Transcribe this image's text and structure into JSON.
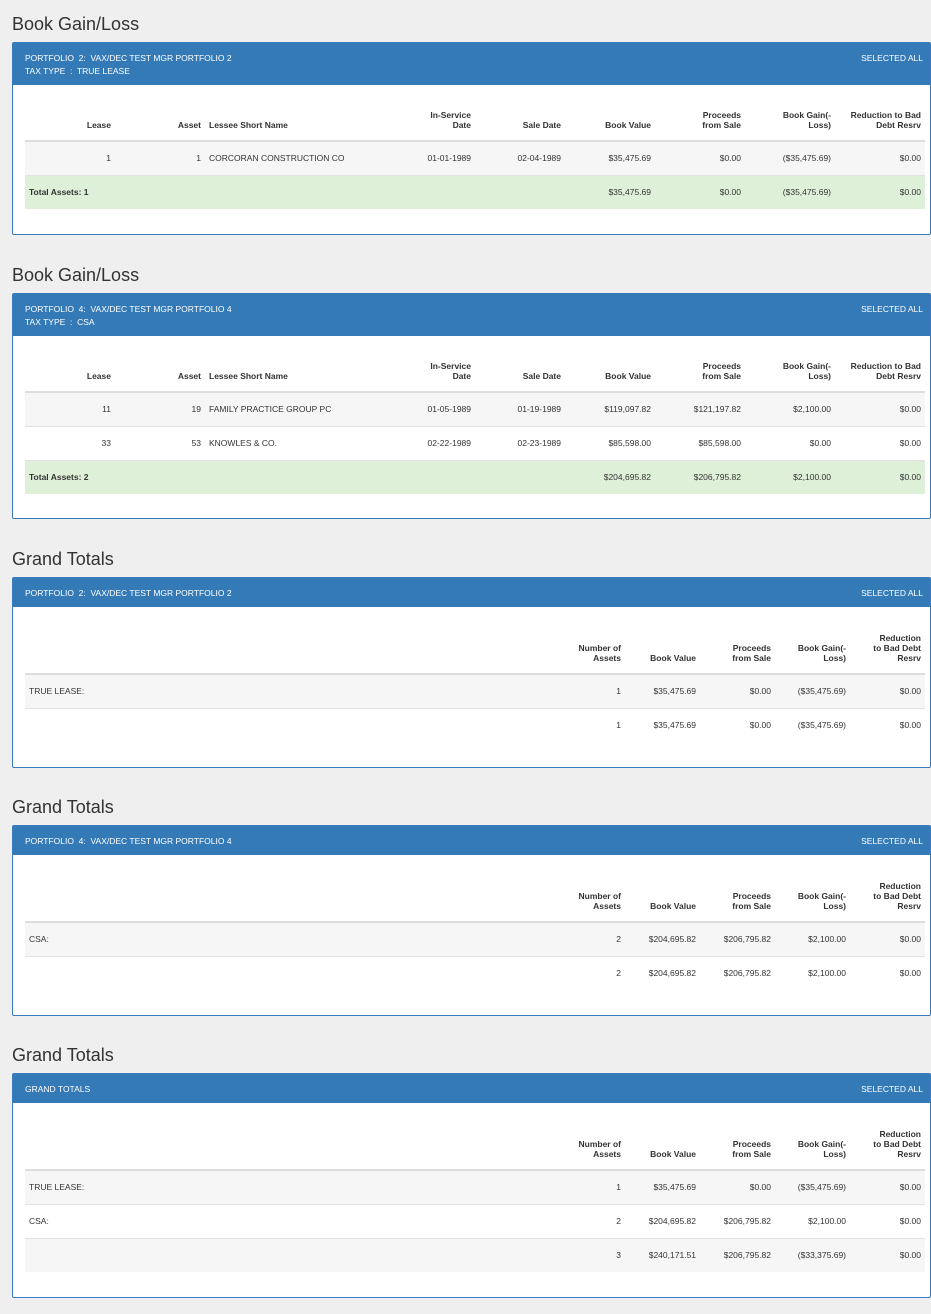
{
  "bgl1": {
    "title": "Book Gain/Loss",
    "header_line1": "PORTFOLIO  2:  VAX/DEC TEST MGR PORTFOLIO 2",
    "header_line2": "TAX TYPE  :  TRUE LEASE",
    "selected": "SELECTED ALL",
    "columns": [
      "Lease",
      "Asset",
      "Lessee Short Name",
      "In-Service Date",
      "Sale Date",
      "Book Value",
      "Proceeds from Sale",
      "Book Gain(-Loss)",
      "Reduction to Bad Debt Resrv"
    ],
    "rows": [
      [
        "1",
        "1",
        "CORCORAN CONSTRUCTION CO",
        "01-01-1989",
        "02-04-1989",
        "$35,475.69",
        "$0.00",
        "($35,475.69)",
        "$0.00"
      ]
    ],
    "total": {
      "label": "Total Assets: 1",
      "book_value": "$35,475.69",
      "proceeds": "$0.00",
      "gain": "($35,475.69)",
      "reduction": "$0.00"
    }
  },
  "bgl2": {
    "title": "Book Gain/Loss",
    "header_line1": "PORTFOLIO  4:  VAX/DEC TEST MGR PORTFOLIO 4",
    "header_line2": "TAX TYPE  :  CSA",
    "selected": "SELECTED ALL",
    "columns": [
      "Lease",
      "Asset",
      "Lessee Short Name",
      "In-Service Date",
      "Sale Date",
      "Book Value",
      "Proceeds from Sale",
      "Book Gain(-Loss)",
      "Reduction to Bad Debt Resrv"
    ],
    "rows": [
      [
        "11",
        "19",
        "FAMILY PRACTICE GROUP PC",
        "01-05-1989",
        "01-19-1989",
        "$119,097.82",
        "$121,197.82",
        "$2,100.00",
        "$0.00"
      ],
      [
        "33",
        "53",
        "KNOWLES & CO.",
        "02-22-1989",
        "02-23-1989",
        "$85,598.00",
        "$85,598.00",
        "$0.00",
        "$0.00"
      ]
    ],
    "total": {
      "label": "Total Assets: 2",
      "book_value": "$204,695.82",
      "proceeds": "$206,795.82",
      "gain": "$2,100.00",
      "reduction": "$0.00"
    }
  },
  "gt1": {
    "title": "Grand Totals",
    "header_line1": "PORTFOLIO  2:  VAX/DEC TEST MGR PORTFOLIO 2",
    "selected": "SELECTED ALL",
    "columns": [
      "",
      "Number of Assets",
      "Book Value",
      "Proceeds from Sale",
      "Book Gain(-Loss)",
      "Reduction to Bad Debt Resrv"
    ],
    "rows": [
      [
        "TRUE LEASE:",
        "1",
        "$35,475.69",
        "$0.00",
        "($35,475.69)",
        "$0.00"
      ],
      [
        "",
        "1",
        "$35,475.69",
        "$0.00",
        "($35,475.69)",
        "$0.00"
      ]
    ]
  },
  "gt2": {
    "title": "Grand Totals",
    "header_line1": "PORTFOLIO  4:  VAX/DEC TEST MGR PORTFOLIO 4",
    "selected": "SELECTED ALL",
    "columns": [
      "",
      "Number of Assets",
      "Book Value",
      "Proceeds from Sale",
      "Book Gain(-Loss)",
      "Reduction to Bad Debt Resrv"
    ],
    "rows": [
      [
        "CSA:",
        "2",
        "$204,695.82",
        "$206,795.82",
        "$2,100.00",
        "$0.00"
      ],
      [
        "",
        "2",
        "$204,695.82",
        "$206,795.82",
        "$2,100.00",
        "$0.00"
      ]
    ]
  },
  "gt3": {
    "title": "Grand Totals",
    "header_line1": "GRAND TOTALS",
    "selected": "SELECTED ALL",
    "columns": [
      "",
      "Number of Assets",
      "Book Value",
      "Proceeds from Sale",
      "Book Gain(-Loss)",
      "Reduction to Bad Debt Resrv"
    ],
    "rows": [
      [
        "TRUE LEASE:",
        "1",
        "$35,475.69",
        "$0.00",
        "($35,475.69)",
        "$0.00"
      ],
      [
        "CSA:",
        "2",
        "$204,695.82",
        "$206,795.82",
        "$2,100.00",
        "$0.00"
      ],
      [
        "",
        "3",
        "$240,171.51",
        "$206,795.82",
        "($33,375.69)",
        "$0.00"
      ]
    ]
  }
}
